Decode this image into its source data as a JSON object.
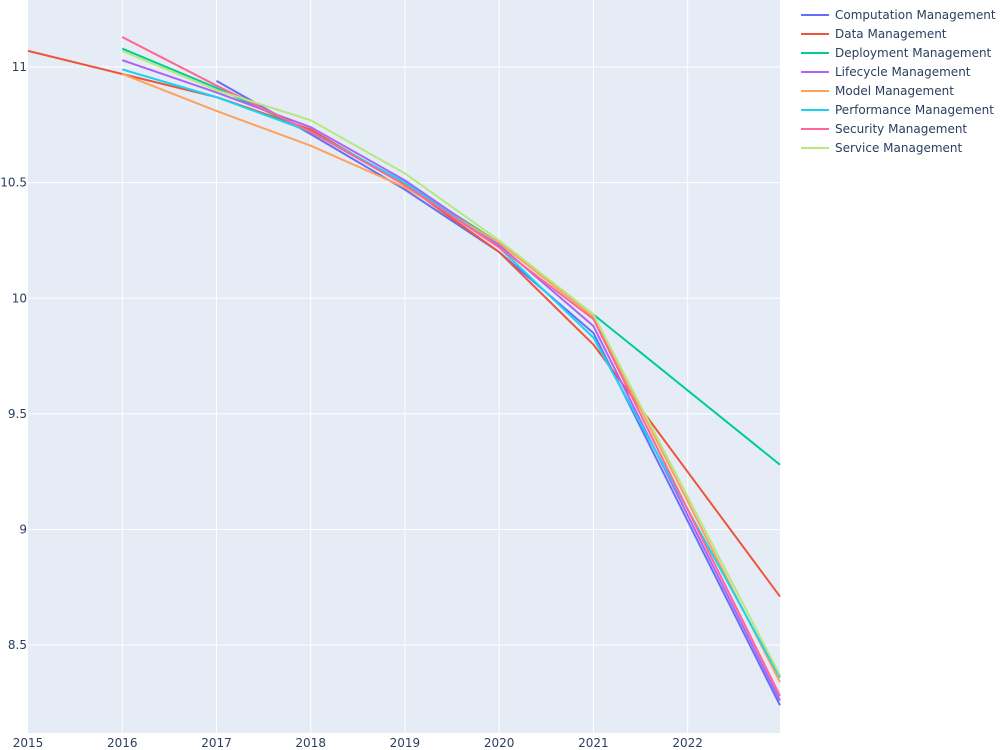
{
  "chart_data": {
    "type": "line",
    "title": "",
    "xlabel": "",
    "ylabel": "",
    "xlim": [
      2015,
      2022.98
    ],
    "ylim": [
      8.12,
      11.29
    ],
    "grid": true,
    "legend_position": "top-right",
    "x_ticks": [
      "2015",
      "2016",
      "2017",
      "2018",
      "2019",
      "2020",
      "2021",
      "2022"
    ],
    "y_ticks": [
      "8.5",
      "9",
      "9.5",
      "10",
      "10.5",
      "11"
    ],
    "series": [
      {
        "name": "Computation Management",
        "color": "#636efa",
        "points": [
          [
            2017,
            10.94
          ],
          [
            2018,
            10.71
          ],
          [
            2019,
            10.47
          ],
          [
            2020,
            10.2
          ],
          [
            2021,
            9.85
          ],
          [
            2022.98,
            8.24
          ]
        ]
      },
      {
        "name": "Data Management",
        "color": "#EF553B",
        "points": [
          [
            2015,
            11.07
          ],
          [
            2016,
            10.97
          ],
          [
            2017,
            10.87
          ],
          [
            2018,
            10.73
          ],
          [
            2019,
            10.49
          ],
          [
            2020,
            10.2
          ],
          [
            2021,
            9.8
          ],
          [
            2022.98,
            8.71
          ]
        ]
      },
      {
        "name": "Deployment Management",
        "color": "#00cc96",
        "points": [
          [
            2016,
            11.08
          ],
          [
            2017,
            10.91
          ],
          [
            2018,
            10.72
          ],
          [
            2019,
            10.5
          ],
          [
            2020,
            10.24
          ],
          [
            2021,
            9.93
          ],
          [
            2022.98,
            9.28
          ]
        ]
      },
      {
        "name": "Lifecycle Management",
        "color": "#ab63fa",
        "points": [
          [
            2016,
            11.03
          ],
          [
            2017,
            10.89
          ],
          [
            2018,
            10.74
          ],
          [
            2019,
            10.51
          ],
          [
            2020,
            10.23
          ],
          [
            2021,
            9.88
          ],
          [
            2022.98,
            8.26
          ]
        ]
      },
      {
        "name": "Model Management",
        "color": "#FFA15A",
        "points": [
          [
            2016,
            10.97
          ],
          [
            2017,
            10.81
          ],
          [
            2018,
            10.66
          ],
          [
            2019,
            10.48
          ],
          [
            2020,
            10.24
          ],
          [
            2021,
            9.92
          ],
          [
            2022.98,
            8.34
          ]
        ]
      },
      {
        "name": "Performance Management",
        "color": "#19d3f3",
        "points": [
          [
            2016,
            10.99
          ],
          [
            2017,
            10.87
          ],
          [
            2018,
            10.72
          ],
          [
            2019,
            10.5
          ],
          [
            2020,
            10.22
          ],
          [
            2021,
            9.83
          ],
          [
            2022.98,
            8.36
          ]
        ]
      },
      {
        "name": "Security Management",
        "color": "#FF6692",
        "points": [
          [
            2016,
            11.13
          ],
          [
            2017,
            10.92
          ],
          [
            2018,
            10.72
          ],
          [
            2019,
            10.49
          ],
          [
            2020,
            10.22
          ],
          [
            2021,
            9.91
          ],
          [
            2022.98,
            8.28
          ]
        ]
      },
      {
        "name": "Service Management",
        "color": "#B6E880",
        "points": [
          [
            2016,
            11.07
          ],
          [
            2017,
            10.9
          ],
          [
            2018,
            10.77
          ],
          [
            2019,
            10.54
          ],
          [
            2020,
            10.25
          ],
          [
            2021,
            9.93
          ],
          [
            2022.98,
            8.37
          ]
        ]
      }
    ]
  }
}
